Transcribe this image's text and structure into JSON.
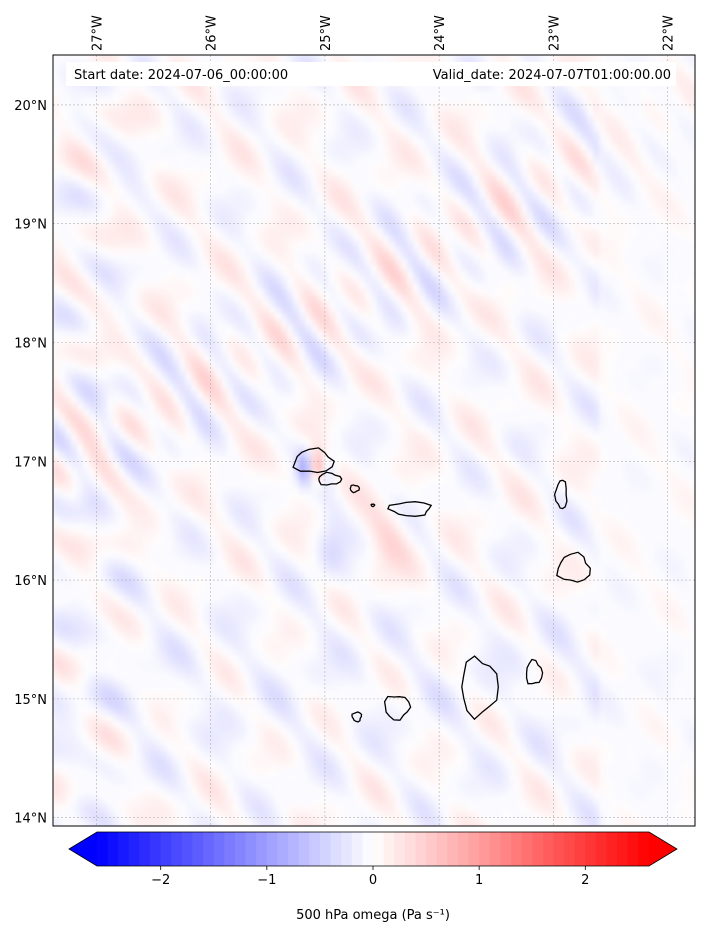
{
  "header": {
    "start_date": "Start date: 2024-07-06_00:00:00",
    "valid_date": "Valid_date: 2024-07-07T01:00:00.00"
  },
  "map": {
    "extent": {
      "lon_min": -27.38,
      "lon_max": -21.76,
      "lat_min": 13.93,
      "lat_max": 20.42
    },
    "lon_ticks": [
      {
        "value": -27,
        "label": "27°W"
      },
      {
        "value": -26,
        "label": "26°W"
      },
      {
        "value": -25,
        "label": "25°W"
      },
      {
        "value": -24,
        "label": "24°W"
      },
      {
        "value": -23,
        "label": "23°W"
      },
      {
        "value": -22,
        "label": "22°W"
      }
    ],
    "lat_ticks": [
      {
        "value": 20,
        "label": "20°N"
      },
      {
        "value": 19,
        "label": "19°N"
      },
      {
        "value": 18,
        "label": "18°N"
      },
      {
        "value": 17,
        "label": "17°N"
      },
      {
        "value": 16,
        "label": "16°N"
      },
      {
        "value": 15,
        "label": "15°N"
      },
      {
        "value": 14,
        "label": "14°N"
      }
    ],
    "gridlines": true,
    "field": "500 hPa omega",
    "islands": [
      {
        "name": "Santo Antão",
        "lon": -25.1,
        "lat": 17.0,
        "rlon": 0.17,
        "rlat": 0.1
      },
      {
        "name": "São Vicente",
        "lon": -24.96,
        "lat": 16.85,
        "rlon": 0.1,
        "rlat": 0.05
      },
      {
        "name": "Santa Luzia",
        "lon": -24.74,
        "lat": 16.77,
        "rlon": 0.04,
        "rlat": 0.03
      },
      {
        "name": "Branco",
        "lon": -24.58,
        "lat": 16.63,
        "rlon": 0.015,
        "rlat": 0.01
      },
      {
        "name": "São Nicolau",
        "lon": -24.25,
        "lat": 16.6,
        "rlon": 0.18,
        "rlat": 0.06
      },
      {
        "name": "Sal",
        "lon": -22.93,
        "lat": 16.72,
        "rlon": 0.05,
        "rlat": 0.12
      },
      {
        "name": "Boa Vista",
        "lon": -22.82,
        "lat": 16.1,
        "rlon": 0.14,
        "rlat": 0.12
      },
      {
        "name": "Maio",
        "lon": -23.17,
        "lat": 15.22,
        "rlon": 0.07,
        "rlat": 0.1
      },
      {
        "name": "Santiago",
        "lon": -23.65,
        "lat": 15.1,
        "rlon": 0.16,
        "rlat": 0.24
      },
      {
        "name": "Fogo",
        "lon": -24.37,
        "lat": 14.93,
        "rlon": 0.11,
        "rlat": 0.1
      },
      {
        "name": "Brava",
        "lon": -24.72,
        "lat": 14.85,
        "rlon": 0.04,
        "rlat": 0.04
      }
    ]
  },
  "colorbar": {
    "label": "500 hPa omega (Pa s⁻¹)",
    "vmin": -2.6,
    "vmax": 2.6,
    "ticks": [
      {
        "value": -2,
        "label": "−2"
      },
      {
        "value": -1,
        "label": "−1"
      },
      {
        "value": 0,
        "label": "0"
      },
      {
        "value": 1,
        "label": "1"
      },
      {
        "value": 2,
        "label": "2"
      }
    ],
    "extend": "both",
    "colormap": "bwr",
    "low_color": "#0000ff",
    "mid_color": "#ffffff",
    "high_color": "#ff0000"
  }
}
